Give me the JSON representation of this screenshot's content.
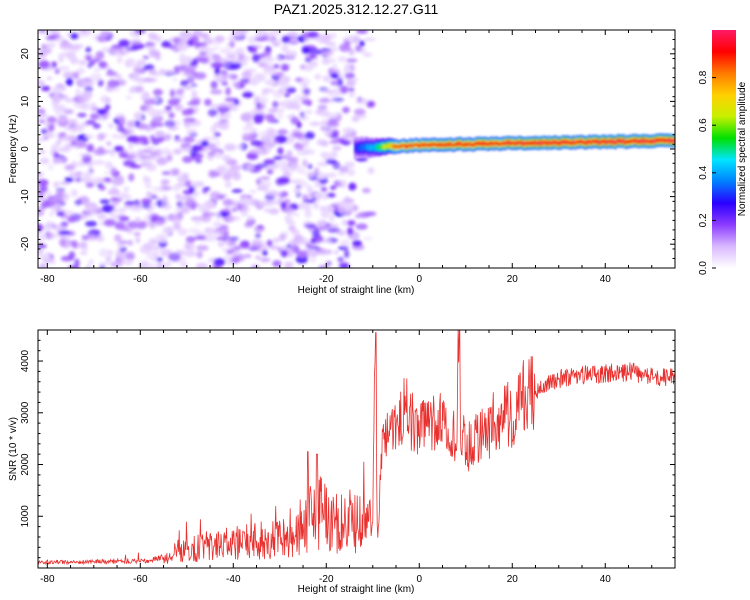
{
  "title": "PAZ1.2025.312.12.27.G11",
  "chart_data": [
    {
      "type": "heatmap",
      "name": "spectrogram",
      "xlabel": "Height of straight line (km)",
      "ylabel": "Frequency (Hz)",
      "xlim": [
        -82,
        55
      ],
      "ylim": [
        -25,
        25
      ],
      "xticks": [
        -80,
        -60,
        -40,
        -20,
        0,
        20,
        40
      ],
      "yticks": [
        -20,
        -10,
        0,
        10,
        20
      ],
      "colorbar": {
        "label": "Normalized spectral amplitude",
        "range": [
          0,
          1
        ],
        "ticks": [
          0.0,
          0.2,
          0.4,
          0.6,
          0.8
        ],
        "colors": [
          "#ffffff",
          "#d9b8ff",
          "#8c3cff",
          "#2a00ff",
          "#0080ff",
          "#00e5ff",
          "#00e000",
          "#c8f000",
          "#ffd000",
          "#ff7a00",
          "#ff0000",
          "#ff1a66"
        ]
      },
      "features": {
        "noise_region_x": [
          -82,
          -14
        ],
        "noise_amplitude_range": [
          0.05,
          0.25
        ],
        "signal_start_x": -14,
        "signal_frequency_hz": [
          {
            "x": -12,
            "f": 0.3
          },
          {
            "x": 0,
            "f": 0.8
          },
          {
            "x": 20,
            "f": 1.2
          },
          {
            "x": 40,
            "f": 1.5
          },
          {
            "x": 55,
            "f": 1.8
          }
        ],
        "signal_amplitude": [
          {
            "x": -14,
            "a": 0.3
          },
          {
            "x": -10,
            "a": 0.45
          },
          {
            "x": -5,
            "a": 0.9
          },
          {
            "x": 10,
            "a": 0.95
          },
          {
            "x": 55,
            "a": 1.0
          }
        ]
      }
    },
    {
      "type": "line",
      "name": "snr",
      "xlabel": "Height of straight line (km)",
      "ylabel": "SNR (10 * v/v)",
      "xlim": [
        -82,
        55
      ],
      "ylim": [
        0,
        4600
      ],
      "xticks": [
        -80,
        -60,
        -40,
        -20,
        0,
        20,
        40
      ],
      "yticks": [
        1000,
        2000,
        3000,
        4000
      ],
      "color": "#e8312f",
      "x": [
        -82,
        -75,
        -65,
        -58,
        -55,
        -52,
        -48,
        -45,
        -40,
        -35,
        -30,
        -26,
        -24,
        -22,
        -20,
        -18,
        -15,
        -12,
        -10,
        -9.5,
        -9,
        -8.5,
        -8,
        -7,
        -5,
        -3,
        0,
        3,
        6,
        8,
        8.5,
        9,
        10,
        13,
        15,
        18,
        20,
        22,
        25,
        28,
        32,
        36,
        40,
        45,
        50,
        55
      ],
      "y": [
        120,
        110,
        130,
        150,
        200,
        320,
        380,
        450,
        480,
        520,
        600,
        750,
        900,
        1100,
        950,
        850,
        900,
        800,
        950,
        4500,
        400,
        1500,
        2300,
        2700,
        2900,
        3100,
        2600,
        2900,
        2800,
        2400,
        4600,
        2600,
        2300,
        2500,
        2700,
        3000,
        2900,
        3300,
        3400,
        3600,
        3700,
        3750,
        3750,
        3800,
        3700,
        3700
      ],
      "spikes": [
        {
          "x": -24,
          "y": 2250
        },
        {
          "x": -22,
          "y": 2200
        },
        {
          "x": -9.3,
          "y": 4550
        },
        {
          "x": 8.7,
          "y": 4600
        }
      ]
    }
  ]
}
